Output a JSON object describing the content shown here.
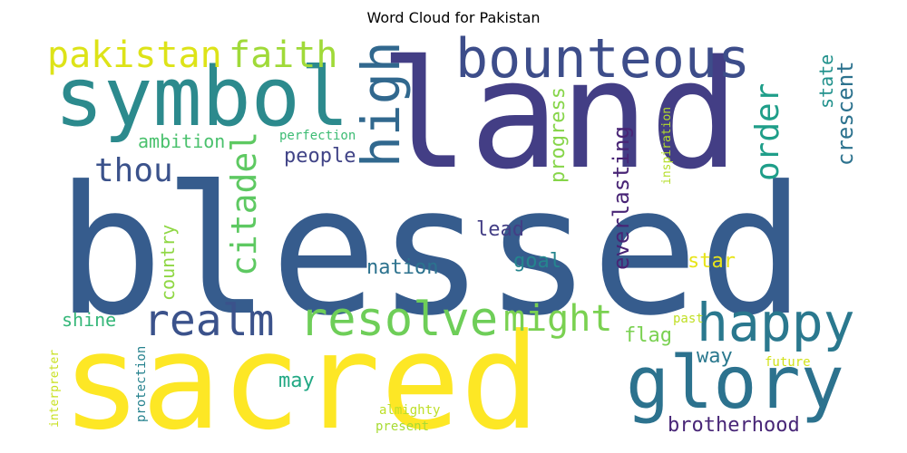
{
  "chart_data": {
    "type": "wordcloud",
    "title": "Word Cloud for Pakistan",
    "words": [
      {
        "text": "blessed",
        "color": "#365c8d"
      },
      {
        "text": "land",
        "color": "#433e85"
      },
      {
        "text": "sacred",
        "color": "#fde725"
      },
      {
        "text": "symbol",
        "color": "#2c8a8d"
      },
      {
        "text": "glory",
        "color": "#2c728e"
      },
      {
        "text": "bounteous",
        "color": "#3d4d8a"
      },
      {
        "text": "happy",
        "color": "#2a788e"
      },
      {
        "text": "resolve",
        "color": "#6ece58"
      },
      {
        "text": "realm",
        "color": "#3b528b"
      },
      {
        "text": "high",
        "color": "#31688e"
      },
      {
        "text": "pakistan",
        "color": "#dde318"
      },
      {
        "text": "faith",
        "color": "#a0da39"
      },
      {
        "text": "might",
        "color": "#7ad151"
      },
      {
        "text": "citadel",
        "color": "#5ec962"
      },
      {
        "text": "order",
        "color": "#1f9e89"
      },
      {
        "text": "thou",
        "color": "#3b528b"
      },
      {
        "text": "everlasting",
        "color": "#482475"
      },
      {
        "text": "crescent",
        "color": "#2c728e"
      },
      {
        "text": "progress",
        "color": "#86d549"
      },
      {
        "text": "people",
        "color": "#414487"
      },
      {
        "text": "ambition",
        "color": "#4ac16d"
      },
      {
        "text": "country",
        "color": "#8fd744"
      },
      {
        "text": "nation",
        "color": "#2c728e"
      },
      {
        "text": "goal",
        "color": "#25858e"
      },
      {
        "text": "lead",
        "color": "#433e85"
      },
      {
        "text": "state",
        "color": "#21918c"
      },
      {
        "text": "star",
        "color": "#e7e419"
      },
      {
        "text": "brotherhood",
        "color": "#482677"
      },
      {
        "text": "flag",
        "color": "#7ad151"
      },
      {
        "text": "way",
        "color": "#2a788e"
      },
      {
        "text": "shine",
        "color": "#35b779"
      },
      {
        "text": "may",
        "color": "#22a884"
      },
      {
        "text": "perfection",
        "color": "#3dbc74"
      },
      {
        "text": "inspiration",
        "color": "#b5de2b"
      },
      {
        "text": "protection",
        "color": "#26828e"
      },
      {
        "text": "interpreter",
        "color": "#c8e020"
      },
      {
        "text": "almighty",
        "color": "#bddf26"
      },
      {
        "text": "present",
        "color": "#a8db34"
      },
      {
        "text": "future",
        "color": "#d2e21b"
      },
      {
        "text": "past",
        "color": "#c0df25"
      }
    ]
  }
}
